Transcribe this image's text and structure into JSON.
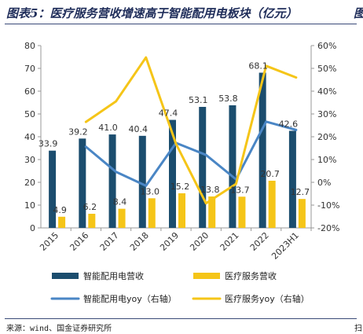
{
  "header": {
    "title": "图表5：医疗服务营收增速高于智能配用电板块（亿元）",
    "corner_mark": "图"
  },
  "footer": {
    "source": "来源：wind、国金证券研究所",
    "corner_mark": "扫"
  },
  "chart_data": {
    "type": "bar",
    "categories": [
      "2015",
      "2016",
      "2017",
      "2018",
      "2019",
      "2020",
      "2021",
      "2022",
      "2023H1"
    ],
    "left_axis": {
      "ylim": [
        0,
        80
      ],
      "ticks": [
        "0",
        "10",
        "20",
        "30",
        "40",
        "50",
        "60",
        "70",
        "80"
      ]
    },
    "right_axis": {
      "ylim": [
        -20,
        60
      ],
      "ticks": [
        "-20%",
        "-10%",
        "0%",
        "10%",
        "20%",
        "30%",
        "40%",
        "50%",
        "60%"
      ]
    },
    "series": [
      {
        "name": "智能配用电营收",
        "kind": "bar",
        "axis": "left",
        "color": "#1b4d6e",
        "values": [
          33.9,
          39.2,
          41.0,
          40.4,
          47.4,
          53.1,
          53.8,
          68.1,
          42.6
        ],
        "labels": [
          "33.9",
          "39.2",
          "41.0",
          "40.4",
          "47.4",
          "53.1",
          "53.8",
          "68.1",
          "42.6"
        ]
      },
      {
        "name": "医疗服务营收",
        "kind": "bar",
        "axis": "left",
        "color": "#f5c518",
        "values": [
          4.9,
          6.2,
          8.4,
          13.0,
          15.2,
          13.8,
          13.7,
          20.7,
          12.7
        ],
        "labels": [
          "4.9",
          "6.2",
          "8.4",
          "13.0",
          "15.2",
          "13.8",
          "13.7",
          "20.7",
          "12.7"
        ]
      },
      {
        "name": "智能配用电yoy（右轴）",
        "kind": "line",
        "axis": "right",
        "color": "#4a86c5",
        "values": [
          null,
          15.6,
          4.6,
          -1.5,
          17.3,
          12.0,
          1.3,
          26.6,
          23.0
        ]
      },
      {
        "name": "医疗服务yoy（右轴）",
        "kind": "line",
        "axis": "right",
        "color": "#f5c518",
        "values": [
          null,
          26.5,
          35.5,
          54.8,
          16.9,
          -9.2,
          -0.7,
          51.1,
          46.0
        ]
      }
    ],
    "legend_position": "bottom"
  }
}
